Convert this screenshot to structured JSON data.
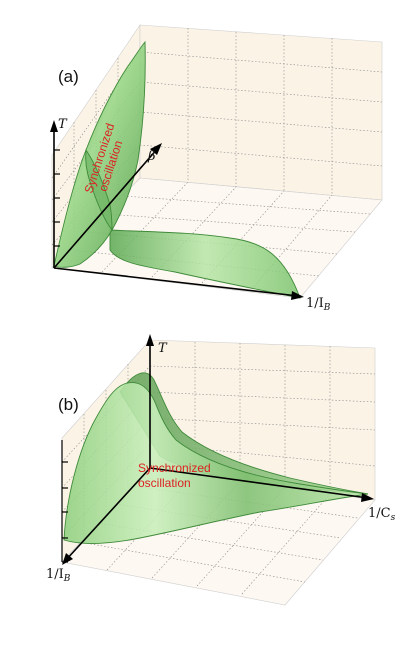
{
  "panels": [
    {
      "label": "(a)",
      "axes": {
        "vertical": "T",
        "depth": "β",
        "horizontal": "1/I",
        "horizontal_sub": "B"
      },
      "annotation_line1": "Synchronized",
      "annotation_line2": "oscillation"
    },
    {
      "label": "(b)",
      "axes": {
        "vertical": "T",
        "right": "1/C",
        "right_sub": "s",
        "left": "1/I",
        "left_sub": "B"
      },
      "annotation_line1": "Synchronized",
      "annotation_line2": "oscillation"
    }
  ],
  "colors": {
    "pane_fill": "#fbf3e6",
    "surface_light": "#c6ebb8",
    "surface_mid": "#8fd07f",
    "surface_dark": "#4e9a45",
    "annotation": "#dd2222"
  }
}
